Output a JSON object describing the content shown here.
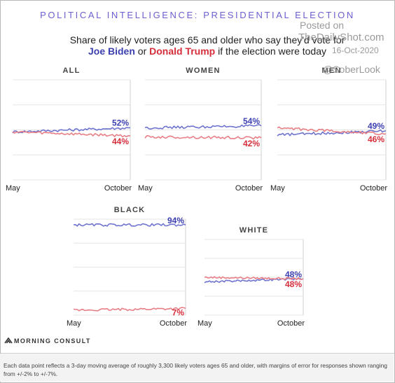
{
  "header": {
    "kicker": "POLITICAL INTELLIGENCE: PRESIDENTIAL ELECTION",
    "subtitle_line1": "Share of likely voters ages 65 and older who say they'd vote for",
    "biden": "Joe Biden",
    "connector": " or ",
    "trump": "Donald Trump",
    "subtitle_end": " if the election were today"
  },
  "watermark": {
    "line1": "Posted on",
    "line2": "TheDailyShot.com",
    "line3": "16-Oct-2020",
    "line4": "@SoberLook"
  },
  "colors": {
    "biden": "#6f74cf",
    "trump": "#e87f86",
    "biden_label": "#3b3fb0",
    "trump_label": "#d62d3a"
  },
  "chart_data": [
    {
      "type": "line",
      "title": "ALL",
      "x_start": "May",
      "x_end": "October",
      "ylim": [
        0,
        100
      ],
      "series": [
        {
          "name": "Joe Biden",
          "start": 48,
          "end": 52,
          "label": "52%"
        },
        {
          "name": "Donald Trump",
          "start": 48,
          "end": 44,
          "label": "44%"
        }
      ]
    },
    {
      "type": "line",
      "title": "WOMEN",
      "x_start": "May",
      "x_end": "October",
      "ylim": [
        0,
        100
      ],
      "series": [
        {
          "name": "Joe Biden",
          "start": 52,
          "end": 54,
          "label": "54%"
        },
        {
          "name": "Donald Trump",
          "start": 43,
          "end": 42,
          "label": "42%"
        }
      ]
    },
    {
      "type": "line",
      "title": "MEN",
      "x_start": "May",
      "x_end": "October",
      "ylim": [
        0,
        100
      ],
      "series": [
        {
          "name": "Joe Biden",
          "start": 45,
          "end": 49,
          "label": "49%"
        },
        {
          "name": "Donald Trump",
          "start": 52,
          "end": 46,
          "label": "46%"
        }
      ]
    },
    {
      "type": "line",
      "title": "BLACK",
      "x_start": "May",
      "x_end": "October",
      "ylim": [
        0,
        100
      ],
      "series": [
        {
          "name": "Joe Biden",
          "start": 94,
          "end": 94,
          "label": "94%"
        },
        {
          "name": "Donald Trump",
          "start": 5,
          "end": 7,
          "label": "7%"
        }
      ]
    },
    {
      "type": "line",
      "title": "WHITE",
      "x_start": "May",
      "x_end": "October",
      "ylim": [
        0,
        100
      ],
      "series": [
        {
          "name": "Joe Biden",
          "start": 44,
          "end": 48,
          "label": "48%"
        },
        {
          "name": "Donald Trump",
          "start": 50,
          "end": 48,
          "label": "48%"
        }
      ]
    }
  ],
  "brand": "MORNING CONSULT",
  "footnote": "Each data point reflects a 3-day moving average of roughly 3,300 likely voters ages 65 and older, with margins of error for responses shown ranging from +/-2% to +/-7%."
}
